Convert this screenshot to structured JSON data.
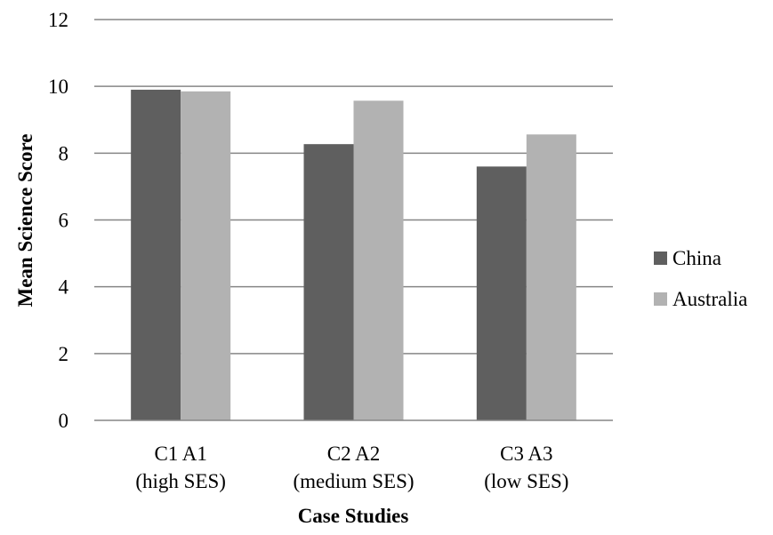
{
  "chart_data": {
    "type": "bar",
    "title": "",
    "xlabel": "Case Studies",
    "ylabel": "Mean Science Score",
    "ylim": [
      0,
      12
    ],
    "yticks": [
      0,
      2,
      4,
      6,
      8,
      10,
      12
    ],
    "grid": true,
    "legend_position": "right",
    "categories": [
      {
        "codes": "C1   A1",
        "group": "(high SES)"
      },
      {
        "codes": "C2    A2",
        "group": "(medium SES)"
      },
      {
        "codes": "C3    A3",
        "group": "(low SES)"
      }
    ],
    "series": [
      {
        "name": "China",
        "color": "#5f5f5f",
        "values": [
          9.9,
          8.27,
          7.6
        ]
      },
      {
        "name": "Australia",
        "color": "#b2b2b2",
        "values": [
          9.85,
          9.57,
          8.56
        ]
      }
    ]
  }
}
